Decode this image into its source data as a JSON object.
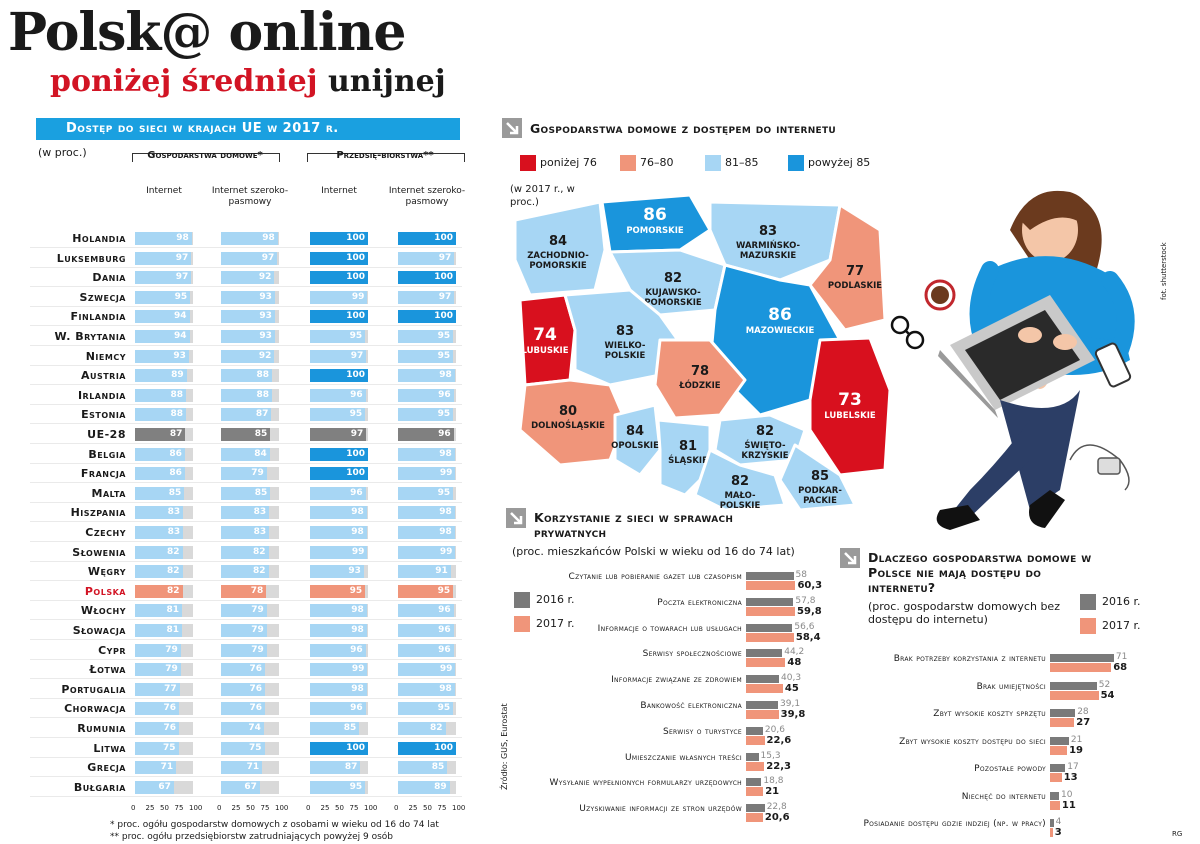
{
  "title_main": "Polsk@ online",
  "title_sub_red": "poniżej średniej",
  "title_sub_black": "unijnej",
  "chart_data": [
    {
      "type": "bar",
      "title": "Dostęp do sieci w krajach UE w 2017 r.",
      "unit": "(w proc.)",
      "groups": [
        {
          "name": "Gospodarstwa domowe*",
          "subs": [
            "Internet",
            "Internet szeroko-pasmowy"
          ]
        },
        {
          "name": "Przedsię-biorstwa**",
          "subs": [
            "Internet",
            "Internet szeroko-pasmowy"
          ]
        }
      ],
      "ticks": [
        "0",
        "25",
        "50",
        "75",
        "100"
      ],
      "xlim": [
        0,
        100
      ],
      "categories": [
        "Holandia",
        "Luksemburg",
        "Dania",
        "Szwecja",
        "Finlandia",
        "W. Brytania",
        "Niemcy",
        "Austria",
        "Irlandia",
        "Estonia",
        "UE-28",
        "Belgia",
        "Francja",
        "Malta",
        "Hiszpania",
        "Czechy",
        "Słowenia",
        "Węgry",
        "Polska",
        "Włochy",
        "Słowacja",
        "Cypr",
        "Łotwa",
        "Portugalia",
        "Chorwacja",
        "Rumunia",
        "Litwa",
        "Grecja",
        "Bułgaria"
      ],
      "series": [
        {
          "name": "Gospodarstwa domowe – Internet",
          "values": [
            98,
            97,
            97,
            95,
            94,
            94,
            93,
            89,
            88,
            88,
            87,
            86,
            86,
            85,
            83,
            83,
            82,
            82,
            82,
            81,
            81,
            79,
            79,
            77,
            76,
            76,
            75,
            71,
            67
          ]
        },
        {
          "name": "Gospodarstwa domowe – Internet szerokopasmowy",
          "values": [
            98,
            97,
            92,
            93,
            93,
            93,
            92,
            88,
            88,
            87,
            85,
            84,
            79,
            85,
            83,
            83,
            82,
            82,
            78,
            79,
            79,
            79,
            76,
            76,
            76,
            74,
            75,
            71,
            67
          ]
        },
        {
          "name": "Przedsiębiorstwa – Internet",
          "values": [
            100,
            100,
            100,
            99,
            100,
            95,
            97,
            100,
            96,
            95,
            97,
            100,
            100,
            96,
            98,
            98,
            99,
            93,
            95,
            98,
            98,
            96,
            99,
            98,
            96,
            85,
            100,
            87,
            95
          ]
        },
        {
          "name": "Przedsiębiorstwa – Internet szerokopasmowy",
          "values": [
            100,
            97,
            100,
            97,
            100,
            95,
            95,
            98,
            96,
            95,
            96,
            98,
            99,
            95,
            98,
            98,
            99,
            91,
            95,
            96,
            96,
            96,
            99,
            98,
            95,
            82,
            100,
            85,
            89
          ]
        }
      ],
      "highlight": {
        "UE-28": "#808080",
        "Polska": "#f0957a"
      },
      "notes": [
        "* proc. ogółu gospodarstw domowych z osobami w wieku od 16 do 74 lat",
        "** proc. ogółu przedsiębiorstw zatrudniających powyżej 9 osób"
      ]
    },
    {
      "type": "map",
      "title": "Gospodarstwa domowe z dostępem do internetu",
      "unit": "(w 2017 r., w proc.)",
      "legend": [
        {
          "label": "poniżej 76",
          "color": "#d8101e"
        },
        {
          "label": "76–80",
          "color": "#f0957a"
        },
        {
          "label": "81–85",
          "color": "#a7d6f4"
        },
        {
          "label": "powyżej 85",
          "color": "#1a95dc"
        }
      ],
      "regions": [
        {
          "name": "Zachodnio-pomorskie",
          "value": 84
        },
        {
          "name": "Pomorskie",
          "value": 86
        },
        {
          "name": "Warmińsko-mazurskie",
          "value": 83
        },
        {
          "name": "Podlaskie",
          "value": 77
        },
        {
          "name": "Kujawsko-pomorskie",
          "value": 82
        },
        {
          "name": "Lubuskie",
          "value": 74
        },
        {
          "name": "Wielko-polskie",
          "value": 83
        },
        {
          "name": "Mazowieckie",
          "value": 86
        },
        {
          "name": "Łódzkie",
          "value": 78
        },
        {
          "name": "Dolnośląskie",
          "value": 80
        },
        {
          "name": "Lubelskie",
          "value": 73
        },
        {
          "name": "Opolskie",
          "value": 84
        },
        {
          "name": "Śląskie",
          "value": 81
        },
        {
          "name": "Święto-krzyskie",
          "value": 82
        },
        {
          "name": "Mało-polskie",
          "value": 82
        },
        {
          "name": "Podkar-packie",
          "value": 85
        }
      ]
    },
    {
      "type": "bar",
      "title": "Korzystanie z sieci w sprawach prywatnych",
      "subtitle": "(proc. mieszkańców Polski w wieku od 16 do 74 lat)",
      "legend": [
        {
          "name": "2016 r.",
          "color": "#7a7a7a"
        },
        {
          "name": "2017 r.",
          "color": "#f0957a"
        }
      ],
      "categories": [
        "Czytanie lub pobieranie gazet lub czasopism",
        "Poczta elektroniczna",
        "Informacje o towarach lub usługach",
        "Serwisy społecznościowe",
        "Informacje związane ze zdrowiem",
        "Bankowość elektroniczna",
        "Serwisy o turystyce",
        "Umieszczanie własnych treści",
        "Wysyłanie wypełnionych formularzy urzędowych",
        "Uzyskiwanie informacji ze stron urzędów"
      ],
      "series": [
        {
          "name": "2016 r.",
          "values": [
            "58",
            "57,8",
            "56,6",
            "44,2",
            "40,3",
            "39,1",
            "20,6",
            "15,3",
            "18,8",
            "22,8"
          ]
        },
        {
          "name": "2017 r.",
          "values": [
            "60,3",
            "59,8",
            "58,4",
            "48",
            "45",
            "39,8",
            "22,6",
            "22,3",
            "21",
            "20,6"
          ]
        }
      ],
      "xlim": [
        0,
        100
      ],
      "source": "Źródło: GUS, Eurostat"
    },
    {
      "type": "bar",
      "title": "Dlaczego gospodarstwa domowe w Polsce nie mają dostępu do internetu?",
      "subtitle": "(proc. gospodarstw domowych bez dostępu do internetu)",
      "legend": [
        {
          "name": "2016 r.",
          "color": "#7a7a7a"
        },
        {
          "name": "2017 r.",
          "color": "#f0957a"
        }
      ],
      "categories": [
        "Brak potrzeby korzystania z internetu",
        "Brak umiejętności",
        "Zbyt wysokie koszty sprzętu",
        "Zbyt wysokie koszty dostępu do sieci",
        "Pozostałe powody",
        "Niechęć do internetu",
        "Posiadanie dostępu gdzie indziej (np. w pracy)"
      ],
      "series": [
        {
          "name": "2016 r.",
          "values": [
            "71",
            "52",
            "28",
            "21",
            "17",
            "10",
            "4"
          ]
        },
        {
          "name": "2017 r.",
          "values": [
            "68",
            "54",
            "27",
            "19",
            "13",
            "11",
            "3"
          ]
        }
      ],
      "xlim": [
        0,
        100
      ]
    }
  ],
  "photo_credit": "fot. shutterstock",
  "page_mark": "RG"
}
